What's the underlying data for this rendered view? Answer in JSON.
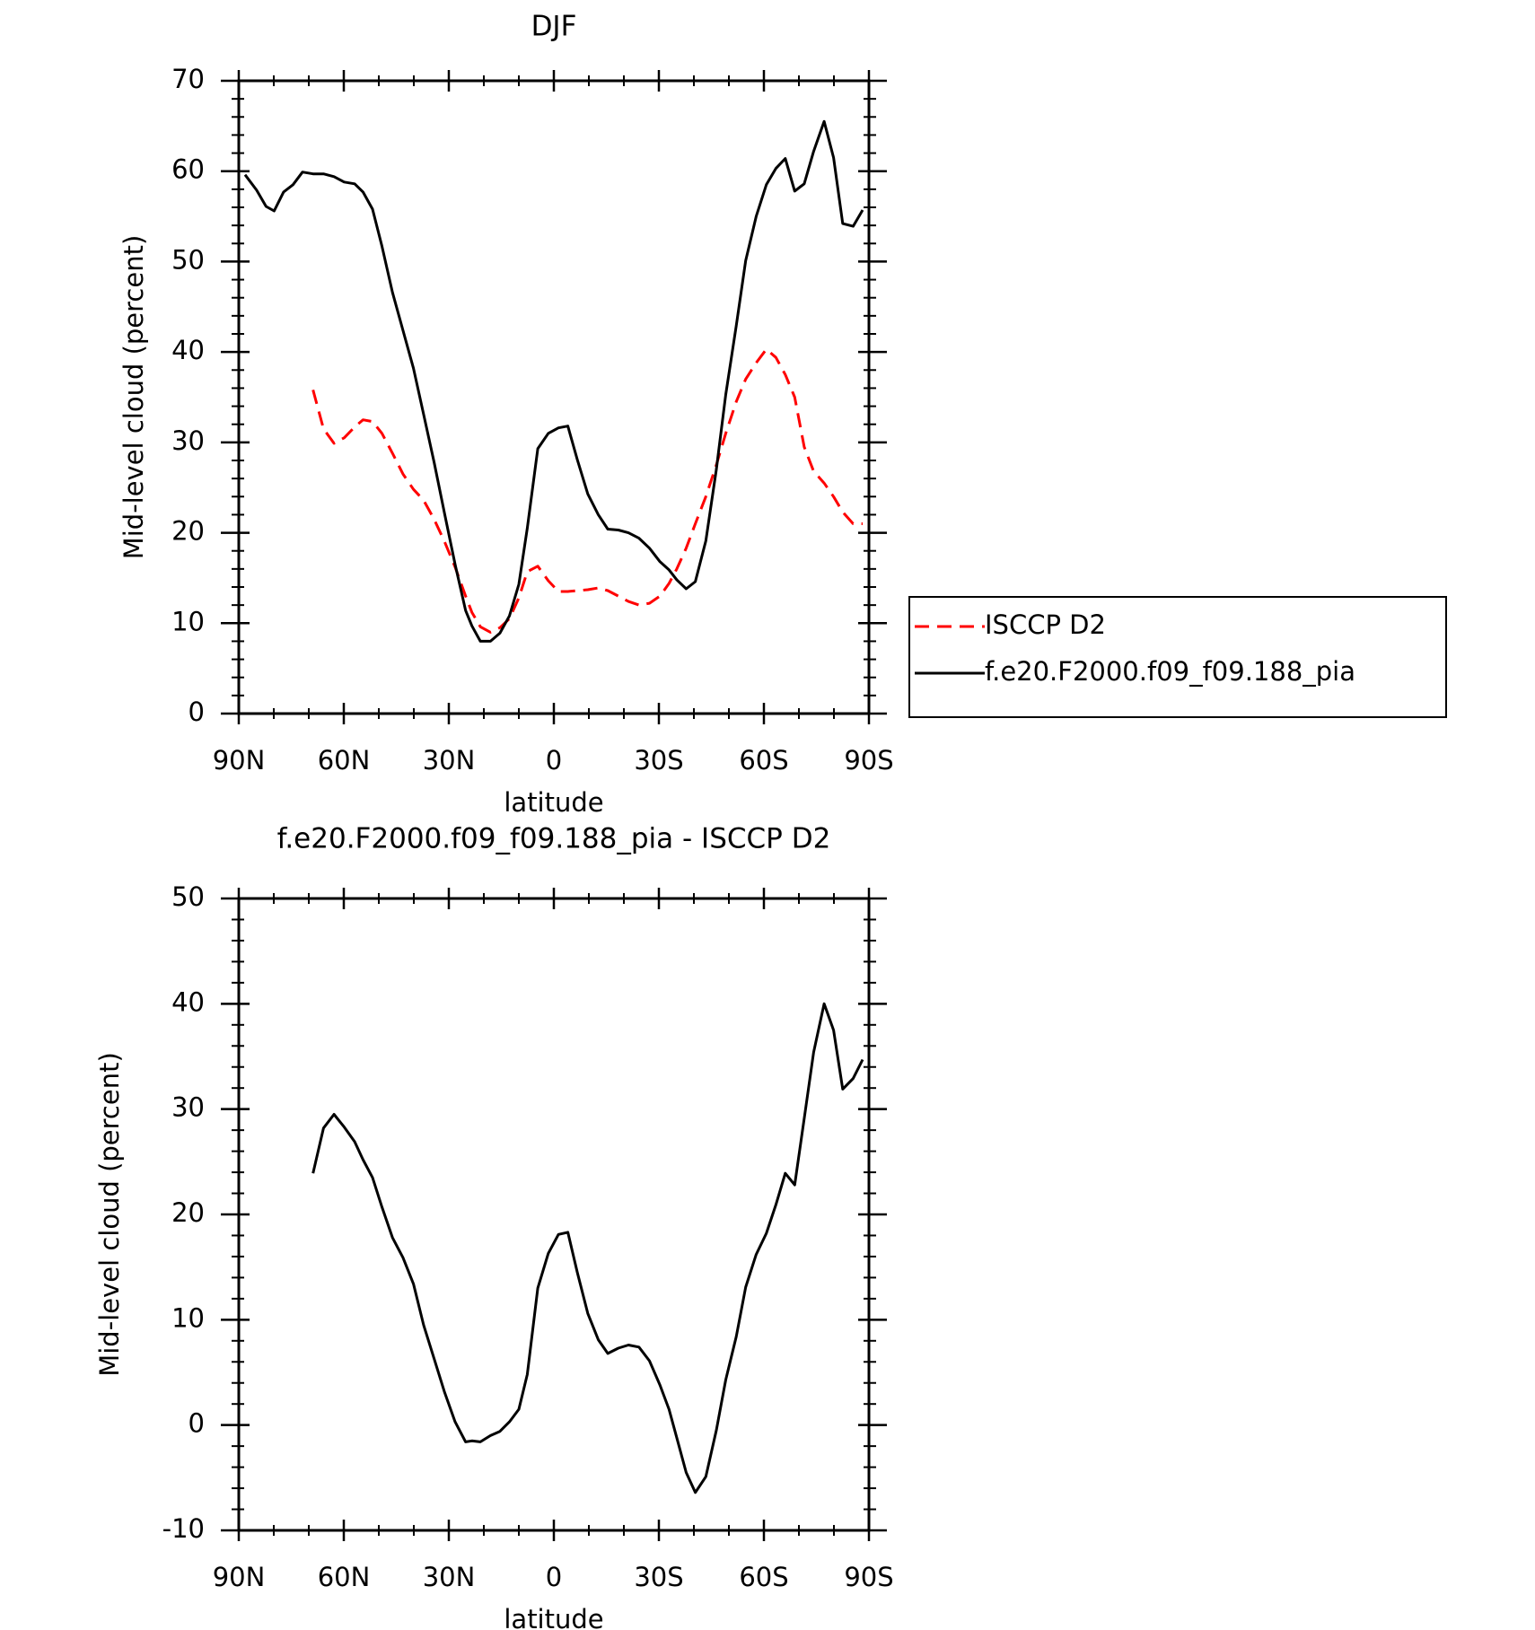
{
  "chart_data": [
    {
      "type": "line",
      "title": "DJF",
      "xlabel": "latitude",
      "ylabel": "Mid-level cloud (percent)",
      "x": [
        88.2,
        84.9,
        82.2,
        79.9,
        77.2,
        74.5,
        71.8,
        68.8,
        65.8,
        62.8,
        59.9,
        56.9,
        54.5,
        51.8,
        49.1,
        46.1,
        43.1,
        40.1,
        37.2,
        34.2,
        31.2,
        28.2,
        25.2,
        23.4,
        21.0,
        18.1,
        15.4,
        12.7,
        10.0,
        7.6,
        4.6,
        1.6,
        -1.3,
        -4.0,
        -6.7,
        -9.7,
        -12.7,
        -15.4,
        -18.4,
        -21.3,
        -24.3,
        -27.3,
        -30.3,
        -32.9,
        -35.1,
        -37.8,
        -40.4,
        -43.4,
        -46.4,
        -49.1,
        -52.1,
        -54.8,
        -57.8,
        -60.7,
        -63.4,
        -66.1,
        -68.8,
        -71.5,
        -74.2,
        -77.2,
        -79.9,
        -82.5,
        -85.5,
        -88.2
      ],
      "series": [
        {
          "name": "ISCCP D2",
          "color": "#ff0000",
          "dash": true,
          "values": [
            null,
            null,
            null,
            null,
            null,
            null,
            null,
            35.8,
            31.5,
            29.9,
            30.5,
            31.7,
            32.5,
            32.3,
            31.0,
            28.8,
            26.5,
            24.8,
            23.6,
            21.5,
            19.0,
            16.2,
            13.0,
            11.2,
            9.6,
            9.0,
            9.5,
            10.5,
            12.8,
            15.7,
            16.3,
            14.7,
            13.5,
            13.5,
            13.6,
            13.7,
            13.9,
            13.6,
            13.0,
            12.4,
            12.0,
            12.2,
            13.0,
            14.4,
            16.0,
            18.3,
            21.0,
            24.0,
            27.5,
            31.0,
            34.5,
            37.0,
            38.8,
            40.3,
            39.4,
            37.5,
            35.0,
            29.5,
            26.8,
            25.5,
            24.0,
            22.3,
            21.0,
            21.0
          ]
        },
        {
          "name": "f.e20.F2000.f09_f09.188_pia",
          "color": "#000000",
          "dash": false,
          "values": [
            59.6,
            57.9,
            56.1,
            55.6,
            57.7,
            58.5,
            59.9,
            59.7,
            59.7,
            59.4,
            58.8,
            58.6,
            57.7,
            55.8,
            51.7,
            46.6,
            42.4,
            38.2,
            33.1,
            27.8,
            22.1,
            16.5,
            11.4,
            9.7,
            8.0,
            8.0,
            8.9,
            10.8,
            14.3,
            20.5,
            29.3,
            31.0,
            31.6,
            31.8,
            28.1,
            24.3,
            22.0,
            20.4,
            20.3,
            20.0,
            19.4,
            18.3,
            16.8,
            15.9,
            14.8,
            13.8,
            14.6,
            19.1,
            27.0,
            35.3,
            42.9,
            50.1,
            55.0,
            58.5,
            60.3,
            61.4,
            57.8,
            58.6,
            62.2,
            65.5,
            61.5,
            54.2,
            53.9,
            55.7
          ]
        }
      ],
      "xlim": [
        90,
        -90
      ],
      "xticks": [
        {
          "value": 90,
          "label": "90N"
        },
        {
          "value": 60,
          "label": "60N"
        },
        {
          "value": 30,
          "label": "30N"
        },
        0,
        {
          "value": -30,
          "label": "30S"
        },
        {
          "value": -60,
          "label": "60S"
        },
        {
          "value": -90,
          "label": "90S"
        }
      ],
      "xminorticks": [
        80,
        70,
        50,
        40,
        20,
        10,
        -10,
        -20,
        -40,
        -50,
        -70,
        -80
      ],
      "ylim": [
        0,
        70
      ],
      "yticks": [
        0,
        10,
        20,
        30,
        40,
        50,
        60,
        70
      ],
      "yminorticks": [
        2,
        4,
        6,
        8,
        12,
        14,
        16,
        18,
        22,
        24,
        26,
        28,
        32,
        34,
        36,
        38,
        42,
        44,
        46,
        48,
        52,
        54,
        56,
        58,
        62,
        64,
        66,
        68
      ],
      "legend": "right"
    },
    {
      "type": "line",
      "title": "f.e20.F2000.f09_f09.188_pia - ISCCP D2",
      "xlabel": "latitude",
      "ylabel": "Mid-level cloud (percent)",
      "x": [
        88.2,
        84.9,
        82.2,
        79.9,
        77.2,
        74.5,
        71.8,
        68.8,
        65.8,
        62.8,
        59.9,
        56.9,
        54.5,
        51.8,
        49.1,
        46.1,
        43.1,
        40.1,
        37.2,
        34.2,
        31.2,
        28.2,
        25.2,
        23.4,
        21.0,
        18.1,
        15.4,
        12.7,
        10.0,
        7.6,
        4.6,
        1.6,
        -1.3,
        -4.0,
        -6.7,
        -9.7,
        -12.7,
        -15.4,
        -18.4,
        -21.3,
        -24.3,
        -27.3,
        -30.3,
        -32.9,
        -35.1,
        -37.8,
        -40.4,
        -43.4,
        -46.4,
        -49.1,
        -52.1,
        -54.8,
        -57.8,
        -60.7,
        -63.4,
        -66.1,
        -68.8,
        -71.5,
        -74.2,
        -77.2,
        -79.9,
        -82.5,
        -85.5,
        -88.2
      ],
      "series": [
        {
          "color": "#000000",
          "dash": false,
          "values": [
            null,
            null,
            null,
            null,
            null,
            null,
            null,
            23.9,
            28.2,
            29.5,
            28.3,
            26.9,
            25.2,
            23.5,
            20.7,
            17.8,
            15.9,
            13.4,
            9.5,
            6.3,
            3.1,
            0.3,
            -1.6,
            -1.5,
            -1.6,
            -1.0,
            -0.6,
            0.3,
            1.5,
            4.8,
            13.0,
            16.3,
            18.1,
            18.3,
            14.5,
            10.6,
            8.1,
            6.8,
            7.3,
            7.6,
            7.4,
            6.1,
            3.8,
            1.5,
            -1.2,
            -4.5,
            -6.4,
            -4.9,
            -0.5,
            4.3,
            8.4,
            13.1,
            16.2,
            18.2,
            20.9,
            23.9,
            22.8,
            29.1,
            35.4,
            40.0,
            37.5,
            31.9,
            32.9,
            34.7
          ]
        }
      ],
      "xlim": [
        90,
        -90
      ],
      "xticks": [
        {
          "value": 90,
          "label": "90N"
        },
        {
          "value": 60,
          "label": "60N"
        },
        {
          "value": 30,
          "label": "30N"
        },
        0,
        {
          "value": -30,
          "label": "30S"
        },
        {
          "value": -60,
          "label": "60S"
        },
        {
          "value": -90,
          "label": "90S"
        }
      ],
      "xminorticks": [
        80,
        70,
        50,
        40,
        20,
        10,
        -10,
        -20,
        -40,
        -50,
        -70,
        -80
      ],
      "ylim": [
        -10,
        50
      ],
      "yticks": [
        -10,
        0,
        10,
        20,
        30,
        40,
        50
      ],
      "yminorticks": [
        -8,
        -6,
        -4,
        -2,
        2,
        4,
        6,
        8,
        12,
        14,
        16,
        18,
        22,
        24,
        26,
        28,
        32,
        34,
        36,
        38,
        42,
        44,
        46,
        48
      ]
    }
  ]
}
